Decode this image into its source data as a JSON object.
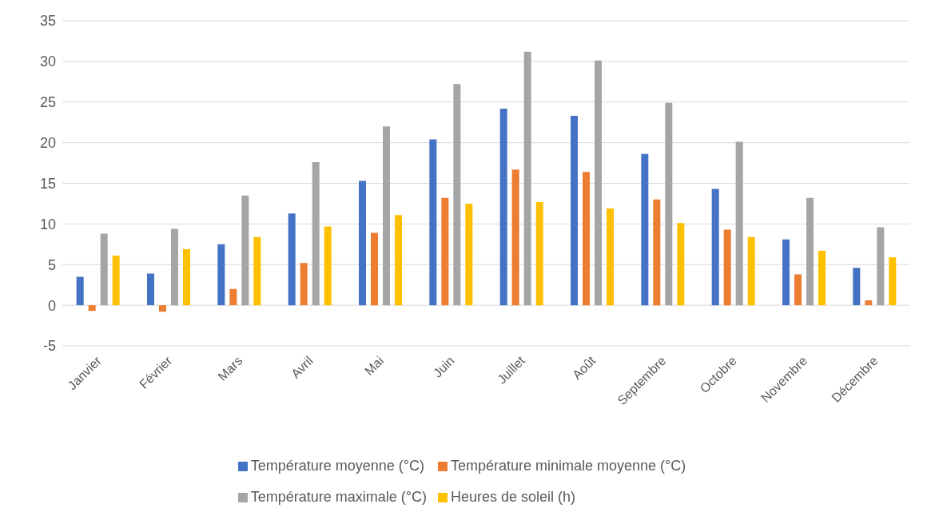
{
  "chart_data": {
    "type": "bar",
    "categories": [
      "Janvier",
      "Février",
      "Mars",
      "Avril",
      "Mai",
      "Juin",
      "Juillet",
      "Août",
      "Septembre",
      "Octobre",
      "Novembre",
      "Décembre"
    ],
    "series": [
      {
        "name": "Température moyenne (°C)",
        "color": "#4472c4",
        "values": [
          3.5,
          3.9,
          7.5,
          11.3,
          15.3,
          20.4,
          24.2,
          23.3,
          18.6,
          14.3,
          8.1,
          4.6
        ]
      },
      {
        "name": "Température minimale moyenne (°C)",
        "color": "#ed7d31",
        "values": [
          -0.7,
          -0.8,
          2.0,
          5.2,
          8.9,
          13.2,
          16.7,
          16.4,
          13.0,
          9.3,
          3.8,
          0.6
        ]
      },
      {
        "name": "Température maximale (°C)",
        "color": "#a5a5a5",
        "values": [
          8.8,
          9.4,
          13.5,
          17.6,
          22.0,
          27.2,
          31.2,
          30.1,
          24.9,
          20.1,
          13.2,
          9.6
        ]
      },
      {
        "name": "Heures de soleil (h)",
        "color": "#ffc000",
        "values": [
          6.1,
          6.9,
          8.4,
          9.7,
          11.1,
          12.5,
          12.7,
          11.9,
          10.1,
          8.4,
          6.7,
          5.9
        ]
      }
    ],
    "ylim": [
      -5,
      35
    ],
    "yticks": [
      -5,
      0,
      5,
      10,
      15,
      20,
      25,
      30,
      35
    ],
    "grid": "y",
    "legend": "bottom"
  }
}
